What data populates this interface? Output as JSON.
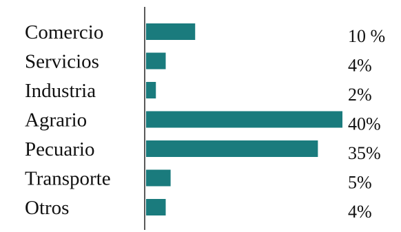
{
  "chart_data": {
    "type": "bar",
    "orientation": "horizontal",
    "categories": [
      "Comercio",
      "Servicios",
      "Industria",
      "Agrario",
      "Pecuario",
      "Transporte",
      "Otros"
    ],
    "values": [
      10,
      4,
      2,
      40,
      35,
      5,
      4
    ],
    "value_labels": [
      "10 %",
      "4%",
      "2%",
      "40%",
      "35%",
      "5%",
      "4%"
    ],
    "title": "",
    "xlabel": "",
    "ylabel": "",
    "xlim": [
      0,
      40
    ],
    "grid": false,
    "legend": "none",
    "bar_color": "#1a7b7d"
  }
}
